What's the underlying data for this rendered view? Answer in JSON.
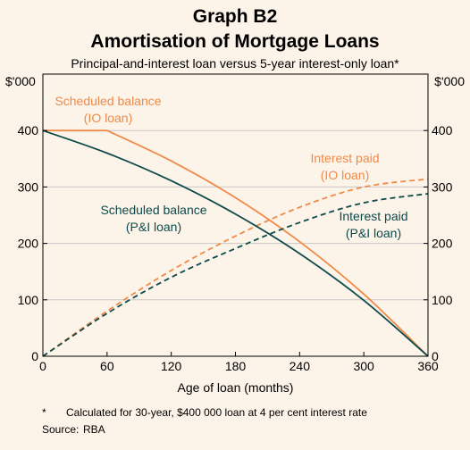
{
  "title": "Graph B2",
  "subtitle": "Amortisation of Mortgage Loans",
  "caption": "Principal-and-interest loan versus 5-year interest-only loan*",
  "footnotes": {
    "note_marker": "*",
    "note_text": "Calculated for 30-year, $400 000 loan at 4 per cent interest rate",
    "source_label": "Source:",
    "source_text": "RBA"
  },
  "chart_data": {
    "type": "line",
    "xlabel": "Age of loan (months)",
    "ylabel_left": "$'000",
    "ylabel_right": "$'000",
    "xlim": [
      0,
      360
    ],
    "ylim": [
      0,
      500
    ],
    "x_ticks": [
      0,
      60,
      120,
      180,
      240,
      300,
      360
    ],
    "y_ticks": [
      0,
      100,
      200,
      300,
      400
    ],
    "x_tick_labels": [
      "0",
      "60",
      "120",
      "180",
      "240",
      "300",
      "360"
    ],
    "y_tick_labels": [
      "0",
      "100",
      "200",
      "300",
      "400"
    ],
    "grid": "horizontal",
    "colors": {
      "io": "#f08a47",
      "pi": "#0d4a4b",
      "grid": "#c9c9c9",
      "background": "#fcf3e9"
    },
    "series": [
      {
        "name": "Scheduled balance (IO loan)",
        "style": "solid",
        "color": "#f08a47",
        "x": [
          0,
          60,
          120,
          180,
          240,
          300,
          360
        ],
        "y": [
          400,
          400,
          346,
          281,
          203,
          110,
          0
        ]
      },
      {
        "name": "Interest paid (IO loan)",
        "style": "dashed",
        "color": "#f08a47",
        "x": [
          0,
          60,
          120,
          180,
          240,
          300,
          360
        ],
        "y": [
          0,
          80,
          152,
          213,
          264,
          300,
          314
        ]
      },
      {
        "name": "Scheduled balance (P&I loan)",
        "style": "solid",
        "color": "#0d4a4b",
        "x": [
          0,
          60,
          120,
          180,
          240,
          300,
          360
        ],
        "y": [
          400,
          360,
          311,
          252,
          182,
          99,
          0
        ]
      },
      {
        "name": "Interest paid (P&I loan)",
        "style": "dashed",
        "color": "#0d4a4b",
        "x": [
          0,
          60,
          120,
          180,
          240,
          300,
          360
        ],
        "y": [
          0,
          76,
          140,
          191,
          237,
          272,
          288
        ]
      }
    ],
    "annotations": [
      {
        "lines": [
          "Scheduled balance",
          "(IO loan)"
        ],
        "color": "#f08a47",
        "series": 0
      },
      {
        "lines": [
          "Interest paid",
          "(IO loan)"
        ],
        "color": "#f08a47",
        "series": 1
      },
      {
        "lines": [
          "Scheduled balance",
          "(P&I loan)"
        ],
        "color": "#0d4a4b",
        "series": 2
      },
      {
        "lines": [
          "Interest paid",
          "(P&I loan)"
        ],
        "color": "#0d4a4b",
        "series": 3
      }
    ]
  }
}
